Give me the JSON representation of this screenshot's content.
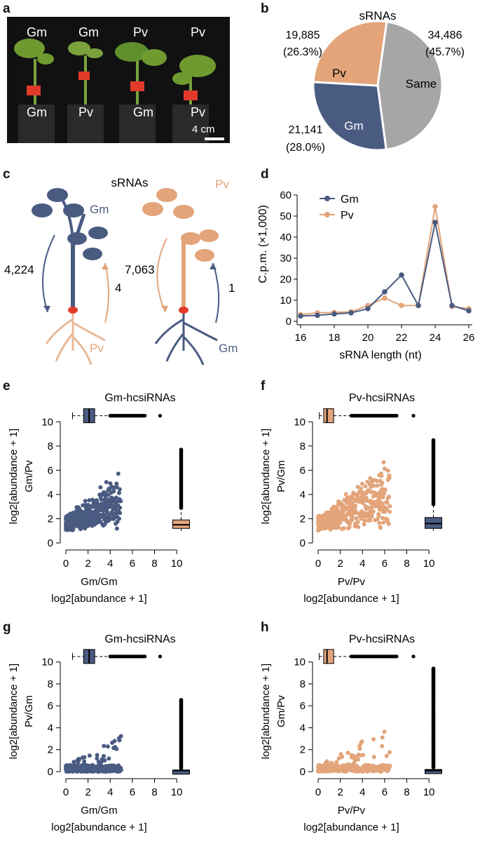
{
  "colors": {
    "gm": "#4a5b82",
    "pv": "#e3a47a",
    "same": "#a6a6a6",
    "graft": "#e23a2a"
  },
  "panel_a": {
    "label": "a",
    "plants": [
      {
        "scion": "Gm",
        "stock": "Gm"
      },
      {
        "scion": "Gm",
        "stock": "Pv"
      },
      {
        "scion": "Pv",
        "stock": "Gm"
      },
      {
        "scion": "Pv",
        "stock": "Pv"
      }
    ],
    "scale_bar": "4 cm"
  },
  "panel_b": {
    "label": "b",
    "title": "sRNAs",
    "slices": [
      {
        "name": "Same",
        "value": 34486,
        "count": "34,486",
        "pct": "(45.7%)"
      },
      {
        "name": "Gm",
        "value": 21141,
        "count": "21,141",
        "pct": "(28.0%)"
      },
      {
        "name": "Pv",
        "value": 19885,
        "count": "19,885",
        "pct": "(26.3%)"
      }
    ]
  },
  "panel_c": {
    "label": "c",
    "title": "sRNAs",
    "left": {
      "shoot": "Gm",
      "root": "Pv",
      "down": "4,224",
      "up": "4"
    },
    "right": {
      "shoot": "Pv",
      "root": "Gm",
      "down": "7,063",
      "up": "1"
    }
  },
  "chart_data": [
    {
      "panel": "d",
      "type": "line",
      "xlabel": "sRNA length (nt)",
      "ylabel": "C.p.m. (×1,000)",
      "xlim": [
        16,
        26
      ],
      "ylim": [
        0,
        60
      ],
      "xticks": [
        "16",
        "18",
        "20",
        "22",
        "24",
        "26"
      ],
      "yticks": [
        "0",
        "10",
        "20",
        "30",
        "40",
        "50",
        "60"
      ],
      "x": [
        16,
        17,
        18,
        19,
        20,
        21,
        22,
        23,
        24,
        25,
        26
      ],
      "series": [
        {
          "name": "Gm",
          "values": [
            2.5,
            2.8,
            3.5,
            4.0,
            6.0,
            14.0,
            22.0,
            7.5,
            47.0,
            7.5,
            5.0
          ]
        },
        {
          "name": "Pv",
          "values": [
            3.2,
            4.0,
            4.2,
            4.5,
            7.5,
            11.0,
            7.5,
            7.5,
            54.5,
            7.0,
            6.0
          ]
        }
      ]
    },
    {
      "panel": "e",
      "type": "scatter",
      "title": "Gm-hcsiRNAs",
      "ylabel_lines": [
        "log2[abundance + 1]",
        "Gm/Pv"
      ],
      "xlabel_lines": [
        "Gm/Gm",
        "log2[abundance + 1]"
      ],
      "point_color": "gm",
      "box_top": "gm",
      "box_right": "pv",
      "xlim": [
        0,
        11
      ],
      "ylim": [
        0,
        11
      ],
      "xticks": [
        "0",
        "2",
        "4",
        "6",
        "8",
        "10"
      ],
      "yticks": [
        "0",
        "2",
        "4",
        "6",
        "8",
        "10"
      ],
      "box_top_stats": {
        "min": 0.6,
        "q1": 1.6,
        "median": 2.1,
        "q3": 2.6,
        "whisker": 4.0,
        "outlier_max": 8.5
      },
      "box_right_stats": {
        "min": 1.0,
        "q1": 1.2,
        "median": 1.5,
        "q3": 1.9,
        "whisker": 2.9,
        "outlier_max": 7.8
      }
    },
    {
      "panel": "f",
      "type": "scatter",
      "title": "Pv-hcsiRNAs",
      "ylabel_lines": [
        "log2[abundance + 1]",
        "Pv/Gm"
      ],
      "xlabel_lines": [
        "Pv/Pv",
        "log2[abundance + 1]"
      ],
      "point_color": "pv",
      "box_top": "pv",
      "box_right": "gm",
      "xlim": [
        0,
        11
      ],
      "ylim": [
        0,
        11
      ],
      "xticks": [
        "0",
        "2",
        "4",
        "6",
        "8",
        "10"
      ],
      "yticks": [
        "0",
        "2",
        "4",
        "6",
        "8",
        "10"
      ],
      "box_top_stats": {
        "min": 0.1,
        "q1": 0.5,
        "median": 0.8,
        "q3": 1.4,
        "whisker": 3.0,
        "outlier_max": 8.6
      },
      "box_right_stats": {
        "min": 1.0,
        "q1": 1.2,
        "median": 1.6,
        "q3": 2.1,
        "whisker": 3.2,
        "outlier_max": 8.5
      }
    },
    {
      "panel": "g",
      "type": "scatter",
      "title": "Gm-hcsiRNAs",
      "ylabel_lines": [
        "log2[abundance + 1]",
        "Pv/Gm"
      ],
      "xlabel_lines": [
        "Gm/Gm",
        "log2[abundance + 1]"
      ],
      "point_color": "gm",
      "box_top": "gm",
      "box_right": "gm",
      "xlim": [
        0,
        11
      ],
      "ylim": [
        0,
        11
      ],
      "xticks": [
        "0",
        "2",
        "4",
        "6",
        "8",
        "10"
      ],
      "yticks": [
        "0",
        "2",
        "4",
        "6",
        "8",
        "10"
      ],
      "box_top_stats": {
        "min": 0.6,
        "q1": 1.6,
        "median": 2.1,
        "q3": 2.6,
        "whisker": 4.0,
        "outlier_max": 8.5
      },
      "box_right_stats": {
        "min": 0.0,
        "q1": 0.05,
        "median": 0.1,
        "q3": 0.15,
        "whisker": 0.3,
        "outlier_max": 6.6
      }
    },
    {
      "panel": "h",
      "type": "scatter",
      "title": "Pv-hcsiRNAs",
      "ylabel_lines": [
        "log2[abundance + 1]",
        "Gm/Pv"
      ],
      "xlabel_lines": [
        "Pv/Pv",
        "log2[abundance + 1]"
      ],
      "point_color": "pv",
      "box_top": "pv",
      "box_right": "gm",
      "xlim": [
        0,
        11
      ],
      "ylim": [
        0,
        11
      ],
      "xticks": [
        "0",
        "2",
        "4",
        "6",
        "8",
        "10"
      ],
      "yticks": [
        "0",
        "2",
        "4",
        "6",
        "8",
        "10"
      ],
      "box_top_stats": {
        "min": 0.1,
        "q1": 0.5,
        "median": 0.8,
        "q3": 1.4,
        "whisker": 3.0,
        "outlier_max": 8.6
      },
      "box_right_stats": {
        "min": 0.0,
        "q1": 0.05,
        "median": 0.1,
        "q3": 0.2,
        "whisker": 0.4,
        "outlier_max": 9.4
      }
    }
  ]
}
